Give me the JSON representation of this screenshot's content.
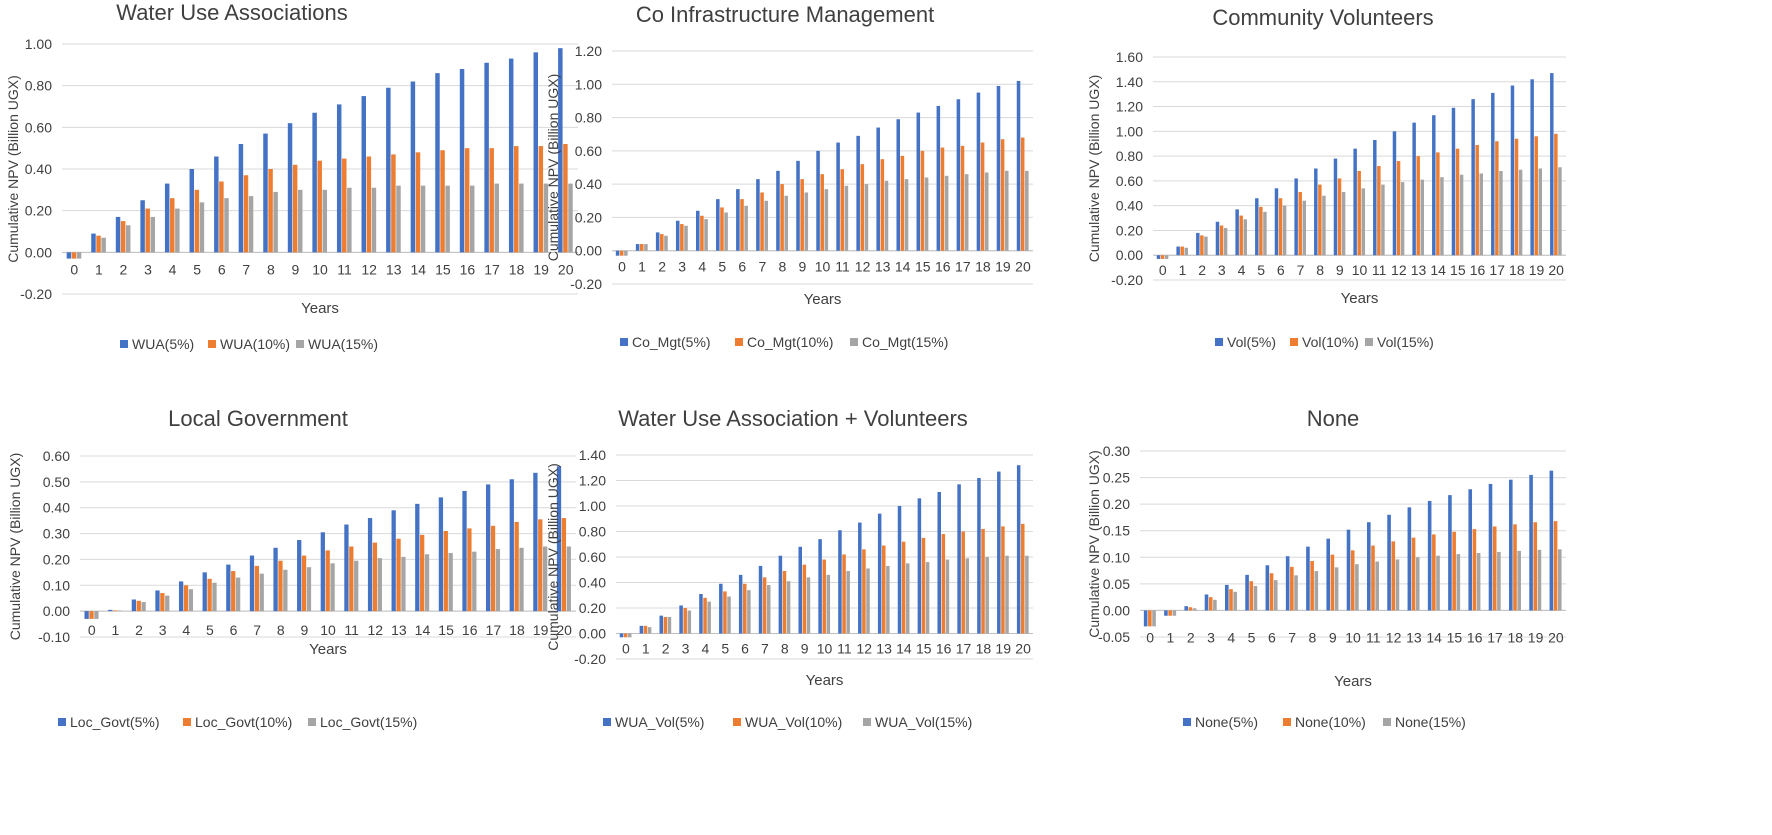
{
  "colors": {
    "s5": "#4472C4",
    "s10": "#ED7D31",
    "s15": "#A5A5A5"
  },
  "chart_data": [
    {
      "type": "bar",
      "title": "Water Use Associations",
      "xlabel": "Years",
      "ylabel": "Cumulative NPV (Billion UGX)",
      "ylim": [
        -0.2,
        1.0
      ],
      "yticks": [
        -0.2,
        0.0,
        0.2,
        0.4,
        0.6,
        0.8,
        1.0
      ],
      "categories": [
        "0",
        "1",
        "2",
        "3",
        "4",
        "5",
        "6",
        "7",
        "8",
        "9",
        "10",
        "11",
        "12",
        "13",
        "14",
        "15",
        "16",
        "17",
        "18",
        "19",
        "20"
      ],
      "grid": true,
      "legend": "bottom",
      "series": [
        {
          "name": "WUA(5%)",
          "values": [
            -0.03,
            0.09,
            0.17,
            0.25,
            0.33,
            0.4,
            0.46,
            0.52,
            0.57,
            0.62,
            0.67,
            0.71,
            0.75,
            0.79,
            0.82,
            0.86,
            0.88,
            0.91,
            0.93,
            0.96,
            0.98
          ]
        },
        {
          "name": "WUA(10%)",
          "values": [
            -0.03,
            0.08,
            0.15,
            0.21,
            0.26,
            0.3,
            0.34,
            0.37,
            0.4,
            0.42,
            0.44,
            0.45,
            0.46,
            0.47,
            0.48,
            0.49,
            0.5,
            0.5,
            0.51,
            0.51,
            0.52
          ]
        },
        {
          "name": "WUA(15%)",
          "values": [
            -0.03,
            0.07,
            0.13,
            0.17,
            0.21,
            0.24,
            0.26,
            0.27,
            0.29,
            0.3,
            0.3,
            0.31,
            0.31,
            0.32,
            0.32,
            0.32,
            0.32,
            0.33,
            0.33,
            0.33,
            0.33
          ]
        }
      ]
    },
    {
      "type": "bar",
      "title": "Co Infrastructure Management",
      "xlabel": "Years",
      "ylabel": "Cumulative NPV (Billion UGX)",
      "ylim": [
        -0.2,
        1.2
      ],
      "yticks": [
        -0.2,
        0.0,
        0.2,
        0.4,
        0.6,
        0.8,
        1.0,
        1.2
      ],
      "categories": [
        "0",
        "1",
        "2",
        "3",
        "4",
        "5",
        "6",
        "7",
        "8",
        "9",
        "10",
        "11",
        "12",
        "13",
        "14",
        "15",
        "16",
        "17",
        "18",
        "19",
        "20"
      ],
      "grid": true,
      "legend": "bottom",
      "series": [
        {
          "name": "Co_Mgt(5%)",
          "values": [
            -0.03,
            0.04,
            0.11,
            0.18,
            0.24,
            0.31,
            0.37,
            0.43,
            0.48,
            0.54,
            0.6,
            0.65,
            0.69,
            0.74,
            0.79,
            0.83,
            0.87,
            0.91,
            0.95,
            0.99,
            1.02
          ]
        },
        {
          "name": "Co_Mgt(10%)",
          "values": [
            -0.03,
            0.04,
            0.1,
            0.16,
            0.21,
            0.26,
            0.31,
            0.35,
            0.4,
            0.43,
            0.46,
            0.49,
            0.52,
            0.55,
            0.57,
            0.6,
            0.62,
            0.63,
            0.65,
            0.67,
            0.68
          ]
        },
        {
          "name": "Co_Mgt(15%)",
          "values": [
            -0.03,
            0.04,
            0.09,
            0.15,
            0.19,
            0.23,
            0.27,
            0.3,
            0.33,
            0.35,
            0.37,
            0.39,
            0.4,
            0.42,
            0.43,
            0.44,
            0.45,
            0.46,
            0.47,
            0.48,
            0.48
          ]
        }
      ]
    },
    {
      "type": "bar",
      "title": "Community Volunteers",
      "xlabel": "Years",
      "ylabel": "Cumulative NPV (Billion UGX)",
      "ylim": [
        -0.2,
        1.6
      ],
      "yticks": [
        -0.2,
        0.0,
        0.2,
        0.4,
        0.6,
        0.8,
        1.0,
        1.2,
        1.4,
        1.6
      ],
      "categories": [
        "0",
        "1",
        "2",
        "3",
        "4",
        "5",
        "6",
        "7",
        "8",
        "9",
        "10",
        "11",
        "12",
        "13",
        "14",
        "15",
        "16",
        "17",
        "18",
        "19",
        "20"
      ],
      "grid": true,
      "legend": "bottom",
      "series": [
        {
          "name": "Vol(5%)",
          "values": [
            -0.03,
            0.07,
            0.18,
            0.27,
            0.37,
            0.46,
            0.54,
            0.62,
            0.7,
            0.78,
            0.86,
            0.93,
            1.0,
            1.07,
            1.13,
            1.19,
            1.26,
            1.31,
            1.37,
            1.42,
            1.47
          ]
        },
        {
          "name": "Vol(10%)",
          "values": [
            -0.03,
            0.07,
            0.16,
            0.24,
            0.32,
            0.39,
            0.46,
            0.51,
            0.57,
            0.62,
            0.68,
            0.72,
            0.76,
            0.8,
            0.83,
            0.86,
            0.89,
            0.92,
            0.94,
            0.96,
            0.98
          ]
        },
        {
          "name": "Vol(15%)",
          "values": [
            -0.03,
            0.06,
            0.15,
            0.22,
            0.29,
            0.35,
            0.4,
            0.44,
            0.48,
            0.51,
            0.54,
            0.57,
            0.59,
            0.61,
            0.63,
            0.65,
            0.66,
            0.68,
            0.69,
            0.7,
            0.71
          ]
        }
      ]
    },
    {
      "type": "bar",
      "title": "Local Government",
      "xlabel": "Years",
      "ylabel": "Cumulative NPV (Billion UGX)",
      "ylim": [
        -0.1,
        0.6
      ],
      "yticks": [
        -0.1,
        0.0,
        0.1,
        0.2,
        0.3,
        0.4,
        0.5,
        0.6
      ],
      "categories": [
        "0",
        "1",
        "2",
        "3",
        "4",
        "5",
        "6",
        "7",
        "8",
        "9",
        "10",
        "11",
        "12",
        "13",
        "14",
        "15",
        "16",
        "17",
        "18",
        "19",
        "20"
      ],
      "grid": true,
      "legend": "bottom",
      "series": [
        {
          "name": "Loc_Govt(5%)",
          "values": [
            -0.03,
            0.005,
            0.045,
            0.08,
            0.115,
            0.15,
            0.18,
            0.215,
            0.245,
            0.275,
            0.305,
            0.335,
            0.36,
            0.39,
            0.415,
            0.44,
            0.465,
            0.49,
            0.51,
            0.535,
            0.56
          ]
        },
        {
          "name": "Loc_Govt(10%)",
          "values": [
            -0.03,
            0.003,
            0.04,
            0.07,
            0.1,
            0.125,
            0.155,
            0.175,
            0.195,
            0.215,
            0.235,
            0.25,
            0.265,
            0.28,
            0.295,
            0.31,
            0.32,
            0.33,
            0.345,
            0.355,
            0.36
          ]
        },
        {
          "name": "Loc_Govt(15%)",
          "values": [
            -0.03,
            0.002,
            0.035,
            0.06,
            0.085,
            0.11,
            0.13,
            0.145,
            0.16,
            0.17,
            0.185,
            0.195,
            0.205,
            0.21,
            0.22,
            0.225,
            0.23,
            0.24,
            0.245,
            0.25,
            0.25
          ]
        }
      ]
    },
    {
      "type": "bar",
      "title": "Water Use Association + Volunteers",
      "xlabel": "Years",
      "ylabel": "Cumulative NPV (Billion UGX)",
      "ylim": [
        -0.2,
        1.4
      ],
      "yticks": [
        -0.2,
        0.0,
        0.2,
        0.4,
        0.6,
        0.8,
        1.0,
        1.2,
        1.4
      ],
      "categories": [
        "0",
        "1",
        "2",
        "3",
        "4",
        "5",
        "6",
        "7",
        "8",
        "9",
        "10",
        "11",
        "12",
        "13",
        "14",
        "15",
        "16",
        "17",
        "18",
        "19",
        "20"
      ],
      "grid": true,
      "legend": "bottom",
      "series": [
        {
          "name": "WUA_Vol(5%)",
          "values": [
            -0.03,
            0.06,
            0.14,
            0.22,
            0.31,
            0.39,
            0.46,
            0.53,
            0.61,
            0.68,
            0.74,
            0.81,
            0.87,
            0.94,
            1.0,
            1.06,
            1.11,
            1.17,
            1.22,
            1.27,
            1.32
          ]
        },
        {
          "name": "WUA_Vol(10%)",
          "values": [
            -0.03,
            0.06,
            0.13,
            0.2,
            0.28,
            0.33,
            0.39,
            0.44,
            0.49,
            0.54,
            0.58,
            0.62,
            0.66,
            0.69,
            0.72,
            0.75,
            0.78,
            0.8,
            0.82,
            0.84,
            0.86
          ]
        },
        {
          "name": "WUA_Vol(15%)",
          "values": [
            -0.03,
            0.05,
            0.13,
            0.18,
            0.25,
            0.29,
            0.34,
            0.38,
            0.41,
            0.44,
            0.46,
            0.49,
            0.51,
            0.53,
            0.55,
            0.56,
            0.58,
            0.59,
            0.6,
            0.61,
            0.61
          ]
        }
      ]
    },
    {
      "type": "bar",
      "title": "None",
      "xlabel": "Years",
      "ylabel": "Cumulative NPV (Billion UGX)",
      "ylim": [
        -0.05,
        0.3
      ],
      "yticks": [
        -0.05,
        0.0,
        0.05,
        0.1,
        0.15,
        0.2,
        0.25,
        0.3
      ],
      "categories": [
        "0",
        "1",
        "2",
        "3",
        "4",
        "5",
        "6",
        "7",
        "8",
        "9",
        "10",
        "11",
        "12",
        "13",
        "14",
        "15",
        "16",
        "17",
        "18",
        "19",
        "20"
      ],
      "grid": true,
      "legend": "bottom",
      "series": [
        {
          "name": "None(5%)",
          "values": [
            -0.03,
            -0.01,
            0.008,
            0.03,
            0.048,
            0.067,
            0.085,
            0.102,
            0.12,
            0.135,
            0.152,
            0.166,
            0.18,
            0.194,
            0.206,
            0.217,
            0.228,
            0.238,
            0.246,
            0.255,
            0.263
          ]
        },
        {
          "name": "None(10%)",
          "values": [
            -0.03,
            -0.01,
            0.006,
            0.025,
            0.04,
            0.055,
            0.07,
            0.082,
            0.093,
            0.105,
            0.113,
            0.122,
            0.13,
            0.137,
            0.143,
            0.148,
            0.153,
            0.158,
            0.162,
            0.166,
            0.168
          ]
        },
        {
          "name": "None(15%)",
          "values": [
            -0.03,
            -0.01,
            0.004,
            0.02,
            0.035,
            0.046,
            0.057,
            0.066,
            0.074,
            0.081,
            0.087,
            0.092,
            0.096,
            0.1,
            0.103,
            0.106,
            0.108,
            0.11,
            0.112,
            0.114,
            0.115
          ]
        }
      ]
    }
  ]
}
